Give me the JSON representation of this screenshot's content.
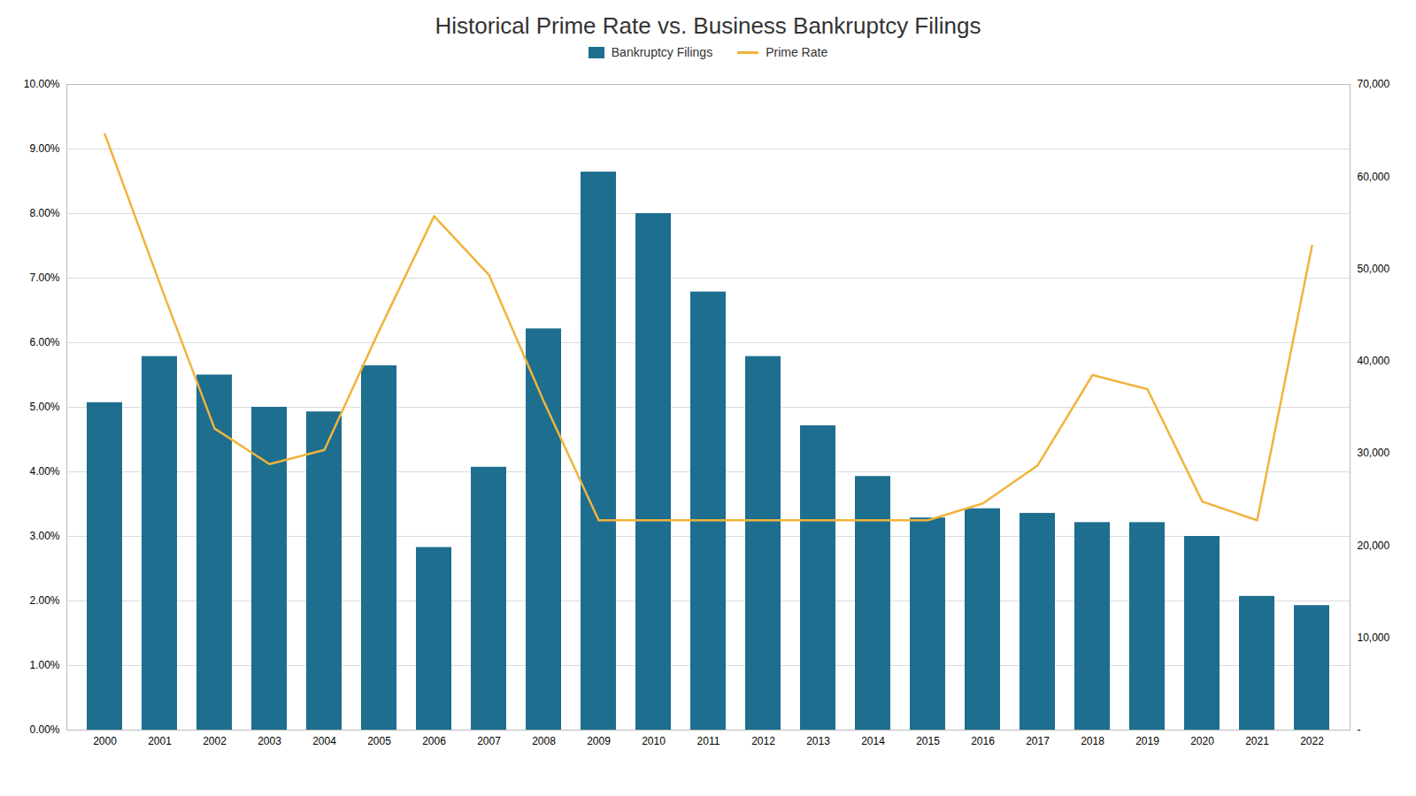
{
  "chart_data": {
    "type": "combo",
    "title": "Historical Prime Rate vs. Business Bankruptcy Filings",
    "x": [
      2000,
      2001,
      2002,
      2003,
      2004,
      2005,
      2006,
      2007,
      2008,
      2009,
      2010,
      2011,
      2012,
      2013,
      2014,
      2015,
      2016,
      2017,
      2018,
      2019,
      2020,
      2021,
      2022
    ],
    "xticks": [
      2000,
      2001,
      2002,
      2003,
      2004,
      2005,
      2006,
      2007,
      2008,
      2009,
      2010,
      2011,
      2012,
      2013,
      2014,
      2015,
      2016,
      2017,
      2018,
      2019,
      2020,
      2021,
      2022
    ],
    "series": [
      {
        "name": "Bankruptcy Filings",
        "type": "bar",
        "axis": "y2",
        "color": "#1d6e8f",
        "values": [
          35500,
          40500,
          38500,
          35000,
          34500,
          39500,
          19800,
          28500,
          43500,
          60500,
          56000,
          47500,
          40500,
          33000,
          27500,
          23000,
          24000,
          23500,
          22500,
          22500,
          21000,
          14500,
          13500
        ]
      },
      {
        "name": "Prime Rate",
        "type": "line",
        "color": "#f0b43c",
        "values": [
          9.23,
          6.92,
          4.67,
          4.12,
          4.34,
          6.19,
          7.96,
          7.05,
          5.09,
          3.25,
          3.25,
          3.25,
          3.25,
          3.25,
          3.25,
          3.25,
          3.51,
          4.1,
          5.5,
          5.28,
          3.54,
          3.25,
          7.5
        ]
      }
    ],
    "ylim": [
      0,
      10.0
    ],
    "yticks": [
      {
        "value": 0.0,
        "label": "0.00%"
      },
      {
        "value": 1.0,
        "label": "1.00%"
      },
      {
        "value": 2.0,
        "label": "2.00%"
      },
      {
        "value": 3.0,
        "label": "3.00%"
      },
      {
        "value": 4.0,
        "label": "4.00%"
      },
      {
        "value": 5.0,
        "label": "5.00%"
      },
      {
        "value": 6.0,
        "label": "6.00%"
      },
      {
        "value": 7.0,
        "label": "7.00%"
      },
      {
        "value": 8.0,
        "label": "8.00%"
      },
      {
        "value": 9.0,
        "label": "9.00%"
      },
      {
        "value": 10.0,
        "label": "10.00%"
      }
    ],
    "y2lim": [
      0,
      70000
    ],
    "y2ticks": [
      {
        "value": 0,
        "label": "-"
      },
      {
        "value": 10000,
        "label": "10,000"
      },
      {
        "value": 20000,
        "label": "20,000"
      },
      {
        "value": 30000,
        "label": "30,000"
      },
      {
        "value": 40000,
        "label": "40,000"
      },
      {
        "value": 50000,
        "label": "50,000"
      },
      {
        "value": 60000,
        "label": "60,000"
      },
      {
        "value": 70000,
        "label": "70,000"
      }
    ],
    "grid": true,
    "legend": "top"
  }
}
